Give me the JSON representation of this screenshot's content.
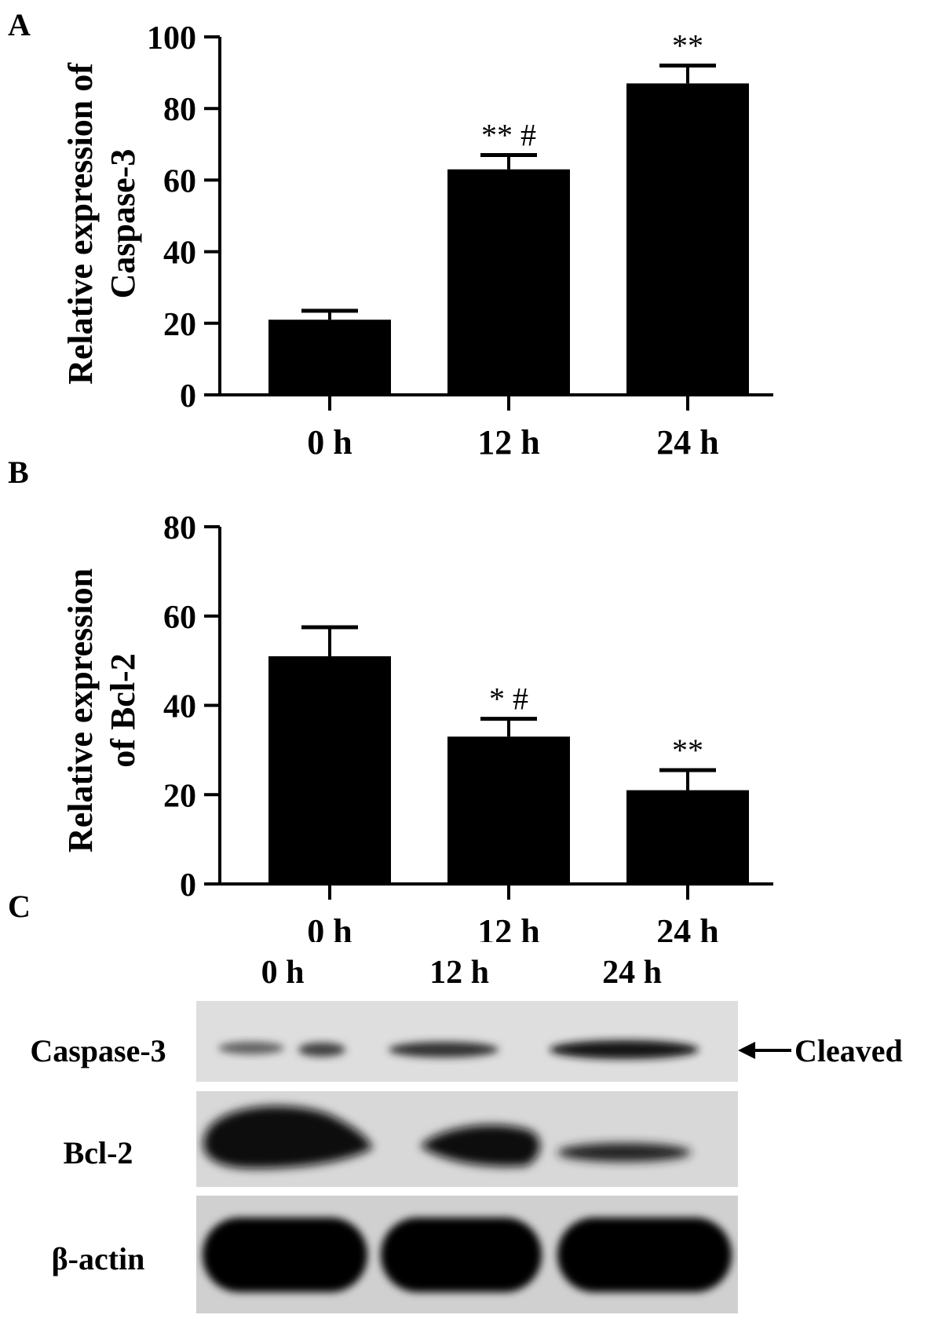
{
  "panels": {
    "A": {
      "letter": "A"
    },
    "B": {
      "letter": "B"
    },
    "C": {
      "letter": "C"
    }
  },
  "chart_data": [
    {
      "type": "bar",
      "panel": "A",
      "categories": [
        "0 h",
        "12 h",
        "24 h"
      ],
      "values": [
        21,
        63,
        87
      ],
      "errors": [
        2.5,
        4,
        5
      ],
      "annotations": [
        "",
        "** #",
        "**"
      ],
      "title": "",
      "xlabel": "",
      "ylabel_lines": [
        "Relative expression of",
        "Caspase-3"
      ],
      "ylim": [
        0,
        100
      ],
      "yticks": [
        0,
        20,
        40,
        60,
        80,
        100
      ],
      "grid": false,
      "bar_color": "#000000"
    },
    {
      "type": "bar",
      "panel": "B",
      "categories": [
        "0 h",
        "12 h",
        "24 h"
      ],
      "values": [
        51,
        33,
        21
      ],
      "errors": [
        6.5,
        4,
        4.5
      ],
      "annotations": [
        "",
        "* #",
        "**"
      ],
      "title": "",
      "xlabel": "",
      "ylabel_lines": [
        "Relative expression",
        "of Bcl-2"
      ],
      "ylim": [
        0,
        80
      ],
      "yticks": [
        0,
        20,
        40,
        60,
        80
      ],
      "grid": false,
      "bar_color": "#000000"
    }
  ],
  "blot": {
    "lanes": [
      "0 h",
      "12 h",
      "24 h"
    ],
    "rows": [
      "Caspase-3",
      "Bcl-2",
      "β-actin"
    ],
    "cleaved_label": "Cleaved",
    "arrow_icon": "left-arrow-icon"
  }
}
